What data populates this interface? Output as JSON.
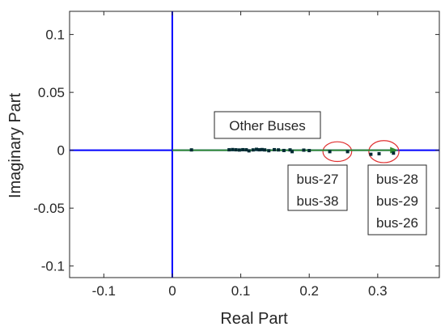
{
  "chart_data": {
    "type": "scatter",
    "xlabel": "Real Part",
    "ylabel": "Imaginary Part",
    "xlim": [
      -0.15,
      0.39
    ],
    "ylim": [
      -0.11,
      0.12
    ],
    "xticks": [
      -0.1,
      0,
      0.1,
      0.2,
      0.3
    ],
    "xtick_labels": [
      "-0.1",
      "0",
      "0.1",
      "0.2",
      "0.3"
    ],
    "yticks": [
      -0.1,
      -0.05,
      0,
      0.05,
      0.1
    ],
    "ytick_labels": [
      "-0.1",
      "-0.05",
      "0",
      "0.05",
      "0.1"
    ],
    "grid": false,
    "series": [
      {
        "color": "#002a33",
        "points": [
          {
            "x": 0.028,
            "y": 0.0003
          },
          {
            "x": 0.083,
            "y": 0.0004
          },
          {
            "x": 0.088,
            "y": 0.0006
          },
          {
            "x": 0.093,
            "y": 0.0004
          },
          {
            "x": 0.098,
            "y": 0.0002
          },
          {
            "x": 0.103,
            "y": 0.0005
          },
          {
            "x": 0.108,
            "y": 0.0004
          },
          {
            "x": 0.112,
            "y": -0.0005
          },
          {
            "x": 0.118,
            "y": 0.0003
          },
          {
            "x": 0.123,
            "y": 0.0008
          },
          {
            "x": 0.127,
            "y": 0.0004
          },
          {
            "x": 0.131,
            "y": 0.0006
          },
          {
            "x": 0.135,
            "y": 0.0003
          },
          {
            "x": 0.141,
            "y": -0.0004
          },
          {
            "x": 0.149,
            "y": 0.0005
          },
          {
            "x": 0.155,
            "y": 0.0003
          },
          {
            "x": 0.163,
            "y": -0.0002
          },
          {
            "x": 0.172,
            "y": 0.0003
          },
          {
            "x": 0.175,
            "y": -0.0012
          },
          {
            "x": 0.192,
            "y": 0.0001
          },
          {
            "x": 0.2,
            "y": -0.0003
          },
          {
            "x": 0.23,
            "y": -0.0012
          },
          {
            "x": 0.256,
            "y": -0.0012
          },
          {
            "x": 0.29,
            "y": -0.0035
          },
          {
            "x": 0.302,
            "y": -0.003
          },
          {
            "x": 0.323,
            "y": -0.0025
          }
        ]
      }
    ],
    "reference_lines": {
      "x0_color": "#0000ff",
      "y0_color": "#0000ff"
    },
    "arrow": {
      "x_start": 0.0,
      "y_start": 0.0,
      "x_end": 0.33,
      "y_end": 0.0,
      "color": "#2e8b2e"
    },
    "highlight_ellipses": [
      {
        "cx": 0.241,
        "cy": -0.0012,
        "rx": 0.021,
        "ry": 0.0085,
        "color": "#e03030"
      },
      {
        "cx": 0.309,
        "cy": -0.0012,
        "rx": 0.022,
        "ry": 0.0095,
        "color": "#e03030"
      }
    ],
    "annotations": [
      {
        "id": "other",
        "lines": [
          "Other Buses"
        ]
      },
      {
        "id": "grp1",
        "lines": [
          "bus-27",
          "bus-38"
        ]
      },
      {
        "id": "grp2",
        "lines": [
          "bus-28",
          "bus-29",
          "bus-26"
        ]
      }
    ]
  }
}
